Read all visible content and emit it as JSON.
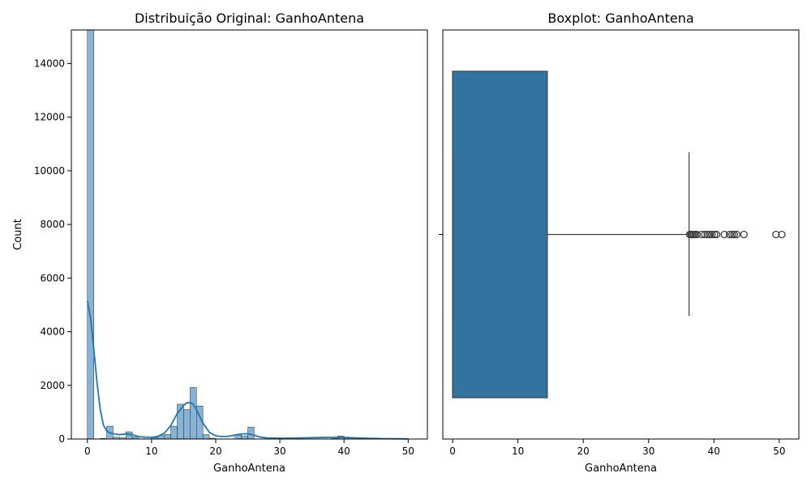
{
  "chart_data": [
    {
      "type": "histogram",
      "title": "Distribuição Original: GanhoAntena",
      "xlabel": "GanhoAntena",
      "ylabel": "Count",
      "xlim": [
        -2.5,
        53
      ],
      "ylim": [
        0,
        15250
      ],
      "x_ticks": [
        0,
        10,
        20,
        30,
        40,
        50
      ],
      "y_ticks": [
        0,
        2000,
        4000,
        6000,
        8000,
        10000,
        12000,
        14000
      ],
      "bar_color": "#86b3d6",
      "kde_color": "#1f77b4",
      "bins": [
        {
          "x0": 0.0,
          "x1": 1.0,
          "count": 15250
        },
        {
          "x0": 2.0,
          "x1": 3.0,
          "count": 20
        },
        {
          "x0": 3.0,
          "x1": 4.0,
          "count": 480
        },
        {
          "x0": 4.0,
          "x1": 5.0,
          "count": 70
        },
        {
          "x0": 5.0,
          "x1": 6.0,
          "count": 40
        },
        {
          "x0": 6.0,
          "x1": 7.0,
          "count": 270
        },
        {
          "x0": 7.0,
          "x1": 8.0,
          "count": 80
        },
        {
          "x0": 8.0,
          "x1": 9.0,
          "count": 10
        },
        {
          "x0": 9.0,
          "x1": 10.0,
          "count": 10
        },
        {
          "x0": 10.0,
          "x1": 11.0,
          "count": 50
        },
        {
          "x0": 11.0,
          "x1": 12.0,
          "count": 130
        },
        {
          "x0": 12.0,
          "x1": 13.0,
          "count": 170
        },
        {
          "x0": 13.0,
          "x1": 14.0,
          "count": 480
        },
        {
          "x0": 14.0,
          "x1": 15.0,
          "count": 1300
        },
        {
          "x0": 15.0,
          "x1": 16.0,
          "count": 1100
        },
        {
          "x0": 16.0,
          "x1": 17.0,
          "count": 1920
        },
        {
          "x0": 17.0,
          "x1": 18.0,
          "count": 1230
        },
        {
          "x0": 18.0,
          "x1": 19.0,
          "count": 160
        },
        {
          "x0": 19.0,
          "x1": 20.0,
          "count": 30
        },
        {
          "x0": 23.0,
          "x1": 24.0,
          "count": 150
        },
        {
          "x0": 24.0,
          "x1": 25.0,
          "count": 120
        },
        {
          "x0": 25.0,
          "x1": 26.0,
          "count": 440
        },
        {
          "x0": 38.0,
          "x1": 39.0,
          "count": 20
        },
        {
          "x0": 39.0,
          "x1": 40.0,
          "count": 110
        },
        {
          "x0": 40.0,
          "x1": 41.0,
          "count": 15
        }
      ],
      "kde": {
        "x": [
          0,
          0.5,
          1,
          1.5,
          2,
          2.5,
          3,
          3.5,
          4,
          5,
          6,
          7,
          8,
          9,
          10,
          11,
          12,
          13,
          14,
          15,
          15.5,
          16,
          16.5,
          17,
          18,
          19,
          20,
          21,
          22,
          23,
          24,
          25,
          26,
          27,
          28,
          30,
          32,
          34,
          36,
          38,
          39,
          40,
          42,
          44,
          46,
          48,
          50
        ],
        "y": [
          5150,
          4500,
          3350,
          2100,
          1100,
          520,
          300,
          230,
          200,
          160,
          190,
          160,
          90,
          70,
          60,
          100,
          220,
          500,
          950,
          1250,
          1350,
          1360,
          1300,
          1100,
          600,
          250,
          120,
          90,
          100,
          150,
          190,
          200,
          140,
          70,
          40,
          30,
          35,
          45,
          55,
          65,
          68,
          60,
          40,
          25,
          15,
          10,
          5
        ]
      }
    },
    {
      "type": "boxplot",
      "title": "Boxplot: GanhoAntena",
      "xlabel": "GanhoAntena",
      "xlim": [
        -1.5,
        53
      ],
      "x_ticks": [
        0,
        10,
        20,
        30,
        40,
        50
      ],
      "box_color": "#3274a1",
      "edge_color": "#3f3f3f",
      "whisker_low": 0.0,
      "q1": 0.0,
      "median": 0.0,
      "q3": 14.5,
      "whisker_high": 36.2,
      "outliers": [
        36.3,
        36.5,
        36.7,
        36.9,
        37.1,
        37.4,
        38.1,
        38.6,
        39.0,
        39.3,
        39.7,
        40.1,
        40.4,
        41.6,
        42.4,
        42.8,
        43.1,
        43.5,
        44.6,
        49.5,
        50.4
      ]
    }
  ]
}
